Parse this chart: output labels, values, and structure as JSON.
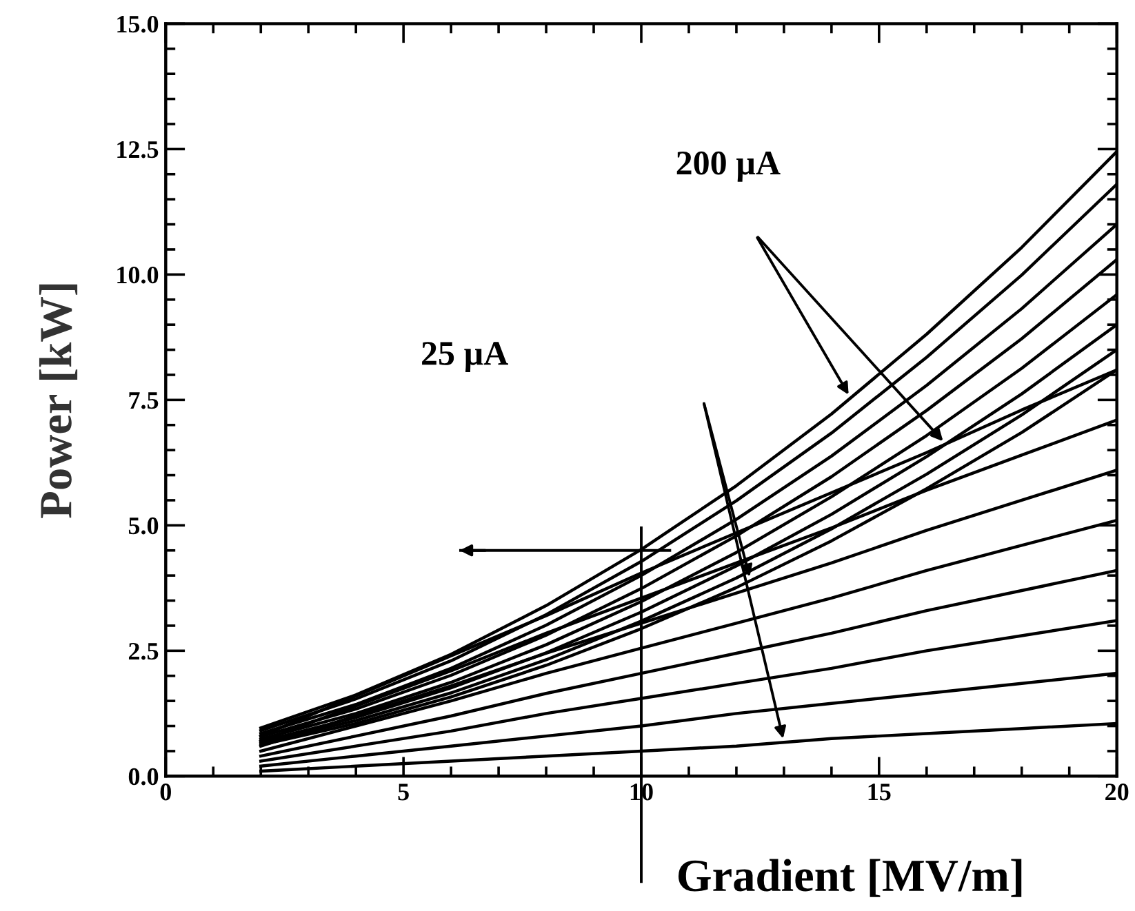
{
  "chart_data": {
    "type": "line",
    "xlabel": "Gradient [MV/m]",
    "ylabel": "Power [kW]",
    "x": [
      2,
      4,
      6,
      8,
      10,
      12,
      14,
      16,
      18,
      20
    ],
    "series": [
      {
        "color": "#000000",
        "values": [
          0.96,
          1.62,
          2.43,
          3.4,
          4.52,
          5.79,
          7.22,
          8.81,
          10.54,
          12.45
        ]
      },
      {
        "color": "#000000",
        "values": [
          0.91,
          1.54,
          2.3,
          3.22,
          4.28,
          5.49,
          6.84,
          8.35,
          9.99,
          11.8
        ]
      },
      {
        "color": "#000000",
        "values": [
          0.85,
          1.43,
          2.15,
          3.01,
          4.0,
          5.12,
          6.38,
          7.79,
          9.32,
          11.0
        ]
      },
      {
        "color": "#000000",
        "values": [
          0.79,
          1.34,
          2.01,
          2.81,
          3.74,
          4.79,
          5.97,
          7.29,
          8.72,
          10.3
        ]
      },
      {
        "color": "#000000",
        "values": [
          0.74,
          1.25,
          1.87,
          2.62,
          3.48,
          4.46,
          5.57,
          6.79,
          8.13,
          9.6
        ]
      },
      {
        "color": "#000000",
        "values": [
          0.69,
          1.17,
          1.76,
          2.46,
          3.27,
          4.19,
          5.22,
          6.37,
          7.62,
          9.0
        ]
      },
      {
        "color": "#000000",
        "values": [
          0.66,
          1.11,
          1.66,
          2.32,
          3.09,
          3.95,
          4.93,
          6.02,
          7.2,
          8.5
        ]
      },
      {
        "color": "#000000",
        "values": [
          0.62,
          1.05,
          1.58,
          2.21,
          2.94,
          3.76,
          4.69,
          5.73,
          6.85,
          8.1
        ]
      },
      {
        "color": "#000000",
        "values": [
          0.8,
          1.6,
          2.4,
          3.2,
          4.05,
          4.85,
          5.65,
          6.45,
          7.3,
          8.1
        ]
      },
      {
        "color": "#000000",
        "values": [
          0.7,
          1.4,
          2.1,
          2.85,
          3.55,
          4.25,
          4.95,
          5.7,
          6.4,
          7.1
        ]
      },
      {
        "color": "#000000",
        "values": [
          0.6,
          1.2,
          1.8,
          2.45,
          3.05,
          3.65,
          4.25,
          4.9,
          5.5,
          6.1
        ]
      },
      {
        "color": "#000000",
        "values": [
          0.5,
          1.0,
          1.5,
          2.05,
          2.55,
          3.05,
          3.55,
          4.1,
          4.6,
          5.1
        ]
      },
      {
        "color": "#000000",
        "values": [
          0.4,
          0.8,
          1.2,
          1.65,
          2.05,
          2.45,
          2.85,
          3.3,
          3.7,
          4.1
        ]
      },
      {
        "color": "#000000",
        "values": [
          0.3,
          0.6,
          0.9,
          1.25,
          1.55,
          1.85,
          2.15,
          2.5,
          2.8,
          3.1
        ]
      },
      {
        "color": "#000000",
        "values": [
          0.2,
          0.4,
          0.6,
          0.8,
          1.0,
          1.25,
          1.45,
          1.65,
          1.85,
          2.05
        ]
      },
      {
        "color": "#000000",
        "values": [
          0.1,
          0.2,
          0.3,
          0.4,
          0.5,
          0.6,
          0.75,
          0.85,
          0.95,
          1.05
        ]
      }
    ],
    "xlim": [
      0,
      20
    ],
    "ylim": [
      0,
      15
    ],
    "xticks": [
      0,
      5,
      10,
      15,
      20
    ],
    "yticks": [
      {
        "value": 0,
        "label": "0.0"
      },
      {
        "value": 2.5,
        "label": "2.5"
      },
      {
        "value": 5,
        "label": "5.0"
      },
      {
        "value": 7.5,
        "label": "7.5"
      },
      {
        "value": 10,
        "label": "10.0"
      },
      {
        "value": 12.5,
        "label": "12.5"
      },
      {
        "value": 15,
        "label": "15.0"
      }
    ],
    "annotations": [
      "200 µA",
      "25 µA"
    ],
    "ref_lines": [
      {
        "axis": "x",
        "value": 10
      },
      {
        "axis": "y",
        "value": 4.5
      }
    ],
    "grid": false,
    "legend": false,
    "marker": "none",
    "line_style": "solid"
  }
}
